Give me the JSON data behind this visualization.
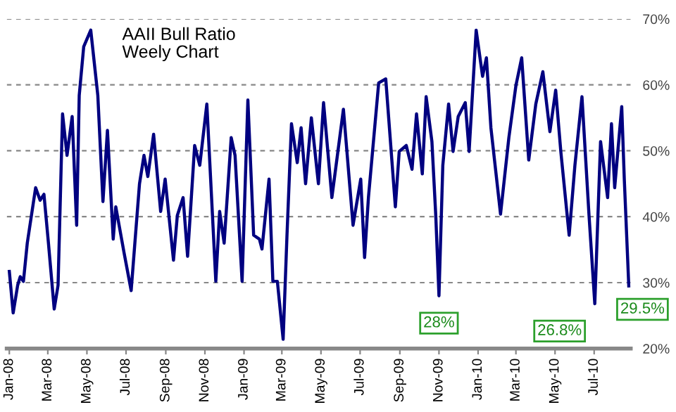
{
  "chart_data": {
    "type": "line",
    "title": "AAII Bull Ratio\nWeely Chart",
    "x": [
      "2008-01-01",
      "2008-01-07",
      "2008-01-14",
      "2008-01-18",
      "2008-01-23",
      "2008-01-29",
      "2008-02-11",
      "2008-02-18",
      "2008-02-24",
      "2008-03-02",
      "2008-03-11",
      "2008-03-17",
      "2008-03-24",
      "2008-03-31",
      "2008-04-08",
      "2008-04-15",
      "2008-04-19",
      "2008-04-26",
      "2008-05-07",
      "2008-05-18",
      "2008-05-26",
      "2008-06-02",
      "2008-06-11",
      "2008-06-15",
      "2008-06-28",
      "2008-07-09",
      "2008-07-22",
      "2008-07-29",
      "2008-08-04",
      "2008-08-13",
      "2008-08-24",
      "2008-08-31",
      "2008-09-13",
      "2008-09-19",
      "2008-09-28",
      "2008-10-05",
      "2008-10-16",
      "2008-10-24",
      "2008-11-04",
      "2008-11-18",
      "2008-11-24",
      "2008-12-01",
      "2008-12-12",
      "2008-12-18",
      "2008-12-29",
      "2009-01-07",
      "2009-01-16",
      "2009-01-25",
      "2009-01-29",
      "2009-02-09",
      "2009-02-15",
      "2009-02-22",
      "2009-03-03",
      "2009-03-09",
      "2009-03-16",
      "2009-03-25",
      "2009-03-31",
      "2009-04-07",
      "2009-04-16",
      "2009-04-27",
      "2009-05-05",
      "2009-05-18",
      "2009-06-05",
      "2009-06-20",
      "2009-07-02",
      "2009-07-08",
      "2009-07-14",
      "2009-07-30",
      "2009-08-10",
      "2009-08-25",
      "2009-08-31",
      "2009-09-11",
      "2009-09-20",
      "2009-09-27",
      "2009-10-06",
      "2009-10-12",
      "2009-10-21",
      "2009-10-27",
      "2009-11-01",
      "2009-11-07",
      "2009-11-16",
      "2009-11-23",
      "2009-12-01",
      "2009-12-12",
      "2009-12-18",
      "2009-12-29",
      "2010-01-08",
      "2010-01-14",
      "2010-01-21",
      "2010-02-05",
      "2010-02-18",
      "2010-03-01",
      "2010-03-10",
      "2010-03-21",
      "2010-04-01",
      "2010-04-12",
      "2010-04-23",
      "2010-05-02",
      "2010-05-10",
      "2010-05-23",
      "2010-06-01",
      "2010-06-12",
      "2010-06-23",
      "2010-07-02",
      "2010-07-11",
      "2010-07-22",
      "2010-07-28",
      "2010-08-02",
      "2010-08-13",
      "2010-08-17",
      "2010-08-24"
    ],
    "series": [
      {
        "color": "#000080",
        "values": [
          31.7,
          25.4,
          29.6,
          30.9,
          30.2,
          36,
          44.4,
          42.5,
          43.4,
          36,
          26,
          29.6,
          55.6,
          49.3,
          55.2,
          38.7,
          58.4,
          65.8,
          68.3,
          58.4,
          42.3,
          53.1,
          36.6,
          41.5,
          34.5,
          28.8,
          45,
          49.3,
          46.1,
          52.5,
          40.8,
          45.7,
          33.4,
          40.2,
          42.9,
          34,
          50.8,
          47.8,
          57.1,
          30.2,
          40.8,
          36,
          52,
          49.3,
          30.2,
          57.7,
          37.2,
          36.6,
          35.1,
          45.7,
          30.2,
          30.2,
          21.4,
          37.2,
          54.1,
          48.2,
          53.5,
          45,
          55,
          45,
          57.3,
          42.9,
          56.3,
          38.7,
          45.7,
          33.8,
          42.9,
          60.3,
          60.9,
          41.5,
          49.9,
          50.8,
          47.2,
          55.6,
          46.5,
          58.2,
          51.4,
          40.2,
          28,
          47.8,
          57.1,
          49.9,
          55.2,
          57.3,
          49.9,
          68.3,
          61.3,
          64.1,
          53.5,
          40.4,
          52,
          59.9,
          64.1,
          48.6,
          57.1,
          62,
          52.9,
          59.2,
          49.9,
          37.2,
          47.8,
          58.2,
          40.2,
          26.8,
          51.4,
          42.9,
          54.1,
          44.4,
          56.7,
          45.7,
          29.5
        ]
      }
    ],
    "xlim": [
      "2007-12-28",
      "2010-08-27"
    ],
    "xticks": [
      {
        "value": "2008-01-01",
        "label": "Jan-08"
      },
      {
        "value": "2008-03-01",
        "label": "Mar-08"
      },
      {
        "value": "2008-05-01",
        "label": "May-08"
      },
      {
        "value": "2008-07-01",
        "label": "Jul-08"
      },
      {
        "value": "2008-09-01",
        "label": "Sep-08"
      },
      {
        "value": "2008-11-01",
        "label": "Nov-08"
      },
      {
        "value": "2009-01-01",
        "label": "Jan-09"
      },
      {
        "value": "2009-03-01",
        "label": "Mar-09"
      },
      {
        "value": "2009-05-01",
        "label": "May-09"
      },
      {
        "value": "2009-07-01",
        "label": "Jul-09"
      },
      {
        "value": "2009-09-01",
        "label": "Sep-09"
      },
      {
        "value": "2009-11-01",
        "label": "Nov-09"
      },
      {
        "value": "2010-01-01",
        "label": "Jan-10"
      },
      {
        "value": "2010-03-01",
        "label": "Mar-10"
      },
      {
        "value": "2010-05-01",
        "label": "May-10"
      },
      {
        "value": "2010-07-01",
        "label": "Jul-10"
      }
    ],
    "ylim": [
      20,
      70
    ],
    "yticks": [
      {
        "value": 20,
        "label": "20%"
      },
      {
        "value": 30,
        "label": "30%"
      },
      {
        "value": 40,
        "label": "40%"
      },
      {
        "value": 50,
        "label": "50%"
      },
      {
        "value": 60,
        "label": "60%"
      },
      {
        "value": 70,
        "label": "70%"
      }
    ],
    "grid": "y",
    "legend": false,
    "marker": "none",
    "line_style": "solid",
    "annotations": [
      {
        "text": "28%",
        "x": "2009-11-01",
        "y": 28
      },
      {
        "text": "26.8%",
        "x": "2010-07-02",
        "y": 26.8
      },
      {
        "text": "29.5%",
        "x": "2010-08-24",
        "y": 29.5
      }
    ]
  }
}
